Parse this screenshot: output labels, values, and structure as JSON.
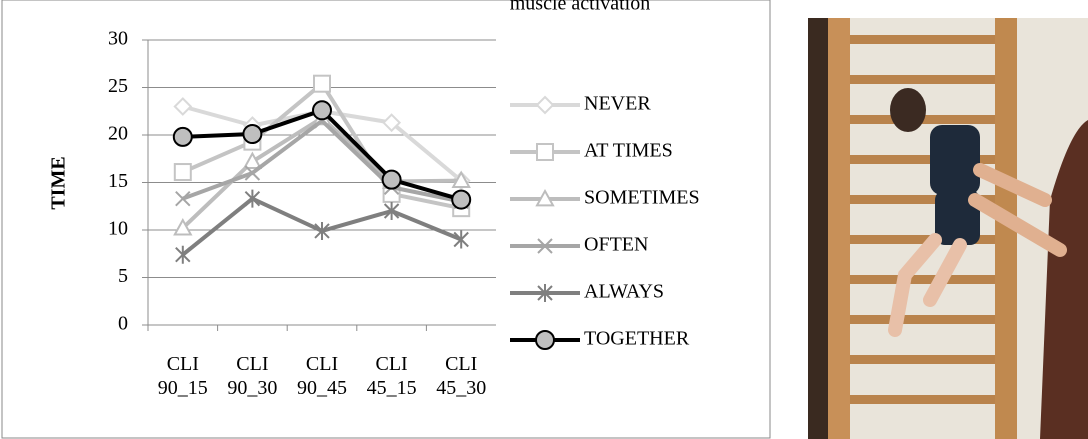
{
  "chart_data": {
    "type": "line",
    "title": "muscle activation",
    "y_label": "TIME",
    "categories": [
      "CLI 90_15",
      "CLI 90_30",
      "CLI 90_45",
      "CLI 45_15",
      "CLI 45_30"
    ],
    "ylim": [
      0,
      30
    ],
    "yticks": [
      0,
      5,
      10,
      15,
      20,
      25,
      30
    ],
    "grid": true,
    "legend": "right",
    "series": [
      {
        "name": "NEVER",
        "color": "#d9d9d9",
        "marker": "diamond",
        "values": [
          23,
          21,
          22.5,
          21.3,
          15.2
        ]
      },
      {
        "name": "AT TIMES",
        "color": "#c4c4c4",
        "marker": "square",
        "values": [
          16.1,
          19.3,
          25.4,
          13.8,
          12.3
        ]
      },
      {
        "name": "SOMETIMES",
        "color": "#bdbdbd",
        "marker": "triangle",
        "values": [
          10.2,
          17.2,
          21.8,
          15.1,
          15.2
        ]
      },
      {
        "name": "OFTEN",
        "color": "#a6a6a6",
        "marker": "x",
        "values": [
          13.3,
          16,
          21.5,
          14.5,
          13
        ]
      },
      {
        "name": "ALWAYS",
        "color": "#7f7f7f",
        "marker": "asterisk",
        "values": [
          7.4,
          13.3,
          9.9,
          12,
          9
        ]
      },
      {
        "name": "TOGETHER",
        "color": "#000000",
        "marker": "circle",
        "values": [
          19.8,
          20.1,
          22.6,
          15.3,
          13.2
        ]
      }
    ]
  }
}
